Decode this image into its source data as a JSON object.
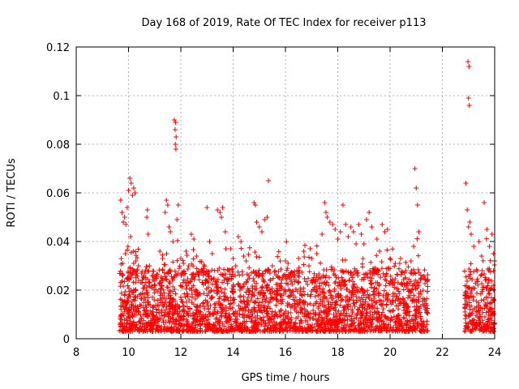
{
  "chart_data": {
    "type": "scatter",
    "title": "Day 168 of 2019, Rate Of TEC Index for receiver p113",
    "xlabel": "GPS time / hours",
    "ylabel": "ROTI / TECUs",
    "xlim": [
      8,
      24
    ],
    "ylim": [
      0,
      0.12
    ],
    "xticks": [
      8,
      10,
      12,
      14,
      16,
      18,
      20,
      22,
      24
    ],
    "yticks": [
      0,
      0.02,
      0.04,
      0.06,
      0.08,
      0.1,
      0.12
    ],
    "xtick_labels": [
      "8",
      "10",
      "12",
      "14",
      "16",
      "18",
      "20",
      "22",
      "24"
    ],
    "ytick_labels": [
      "0",
      "0.02",
      "0.04",
      "0.06",
      "0.08",
      "0.1",
      "0.12"
    ],
    "grid": true,
    "marker": "+",
    "color": "#ff0000",
    "series": [
      {
        "name": "ROTI",
        "points": [
          [
            9.7,
            0.057
          ],
          [
            9.75,
            0.052
          ],
          [
            9.8,
            0.048
          ],
          [
            9.85,
            0.05
          ],
          [
            9.9,
            0.047
          ],
          [
            9.95,
            0.054
          ],
          [
            10.0,
            0.061
          ],
          [
            10.05,
            0.066
          ],
          [
            10.1,
            0.064
          ],
          [
            10.15,
            0.059
          ],
          [
            10.2,
            0.062
          ],
          [
            10.25,
            0.06
          ],
          [
            9.72,
            0.033
          ],
          [
            9.78,
            0.031
          ],
          [
            9.88,
            0.035
          ],
          [
            9.98,
            0.038
          ],
          [
            10.08,
            0.042
          ],
          [
            10.18,
            0.036
          ],
          [
            10.28,
            0.032
          ],
          [
            10.38,
            0.03
          ],
          [
            10.5,
            0.027
          ],
          [
            10.6,
            0.021
          ],
          [
            10.7,
            0.05
          ],
          [
            10.72,
            0.053
          ],
          [
            10.75,
            0.043
          ],
          [
            10.8,
            0.03
          ],
          [
            10.9,
            0.026
          ],
          [
            11.0,
            0.022
          ],
          [
            11.2,
            0.036
          ],
          [
            11.3,
            0.033
          ],
          [
            11.4,
            0.052
          ],
          [
            11.45,
            0.057
          ],
          [
            11.5,
            0.055
          ],
          [
            11.55,
            0.046
          ],
          [
            11.6,
            0.044
          ],
          [
            11.7,
            0.04
          ],
          [
            11.75,
            0.09
          ],
          [
            11.8,
            0.089
          ],
          [
            11.78,
            0.086
          ],
          [
            11.82,
            0.083
          ],
          [
            11.79,
            0.08
          ],
          [
            11.81,
            0.078
          ],
          [
            11.85,
            0.049
          ],
          [
            11.9,
            0.055
          ],
          [
            12.0,
            0.033
          ],
          [
            12.1,
            0.031
          ],
          [
            12.2,
            0.036
          ],
          [
            12.3,
            0.03
          ],
          [
            12.4,
            0.043
          ],
          [
            12.5,
            0.041
          ],
          [
            12.6,
            0.034
          ],
          [
            12.8,
            0.027
          ],
          [
            13.0,
            0.054
          ],
          [
            13.1,
            0.04
          ],
          [
            13.2,
            0.035
          ],
          [
            13.4,
            0.053
          ],
          [
            13.5,
            0.052
          ],
          [
            13.55,
            0.05
          ],
          [
            13.6,
            0.054
          ],
          [
            13.7,
            0.044
          ],
          [
            13.9,
            0.037
          ],
          [
            14.0,
            0.033
          ],
          [
            14.1,
            0.03
          ],
          [
            14.2,
            0.042
          ],
          [
            14.3,
            0.04
          ],
          [
            14.4,
            0.034
          ],
          [
            14.5,
            0.032
          ],
          [
            14.6,
            0.026
          ],
          [
            14.8,
            0.056
          ],
          [
            14.85,
            0.055
          ],
          [
            14.9,
            0.048
          ],
          [
            15.0,
            0.046
          ],
          [
            15.1,
            0.044
          ],
          [
            15.2,
            0.049
          ],
          [
            15.3,
            0.05
          ],
          [
            15.35,
            0.065
          ],
          [
            15.5,
            0.03
          ],
          [
            15.6,
            0.028
          ],
          [
            15.8,
            0.032
          ],
          [
            16.0,
            0.032
          ],
          [
            16.1,
            0.031
          ],
          [
            16.2,
            0.027
          ],
          [
            16.5,
            0.033
          ],
          [
            16.7,
            0.036
          ],
          [
            16.9,
            0.03
          ],
          [
            17.0,
            0.033
          ],
          [
            17.2,
            0.035
          ],
          [
            17.4,
            0.043
          ],
          [
            17.5,
            0.056
          ],
          [
            17.55,
            0.052
          ],
          [
            17.6,
            0.05
          ],
          [
            17.7,
            0.048
          ],
          [
            17.8,
            0.047
          ],
          [
            17.9,
            0.045
          ],
          [
            18.0,
            0.041
          ],
          [
            18.1,
            0.044
          ],
          [
            18.2,
            0.055
          ],
          [
            18.3,
            0.047
          ],
          [
            18.4,
            0.042
          ],
          [
            18.5,
            0.046
          ],
          [
            18.6,
            0.044
          ],
          [
            18.7,
            0.039
          ],
          [
            18.8,
            0.047
          ],
          [
            18.9,
            0.043
          ],
          [
            19.0,
            0.039
          ],
          [
            19.1,
            0.049
          ],
          [
            19.2,
            0.052
          ],
          [
            19.3,
            0.046
          ],
          [
            19.5,
            0.041
          ],
          [
            19.6,
            0.036
          ],
          [
            19.7,
            0.047
          ],
          [
            19.8,
            0.044
          ],
          [
            19.9,
            0.045
          ],
          [
            20.0,
            0.033
          ],
          [
            20.2,
            0.031
          ],
          [
            20.4,
            0.033
          ],
          [
            20.6,
            0.028
          ],
          [
            20.8,
            0.032
          ],
          [
            20.9,
            0.038
          ],
          [
            20.95,
            0.07
          ],
          [
            21.0,
            0.062
          ],
          [
            21.05,
            0.055
          ],
          [
            21.1,
            0.044
          ],
          [
            21.2,
            0.025
          ],
          [
            22.9,
            0.064
          ],
          [
            22.95,
            0.053
          ],
          [
            23.0,
            0.046
          ],
          [
            23.05,
            0.048
          ],
          [
            22.98,
            0.114
          ],
          [
            23.02,
            0.112
          ],
          [
            23.0,
            0.099
          ],
          [
            23.03,
            0.096
          ],
          [
            23.1,
            0.043
          ],
          [
            23.2,
            0.038
          ],
          [
            23.4,
            0.04
          ],
          [
            23.5,
            0.034
          ],
          [
            23.6,
            0.056
          ],
          [
            23.7,
            0.045
          ],
          [
            23.8,
            0.038
          ],
          [
            23.9,
            0.043
          ],
          [
            23.95,
            0.035
          ],
          [
            24.0,
            0.032
          ]
        ]
      }
    ]
  }
}
